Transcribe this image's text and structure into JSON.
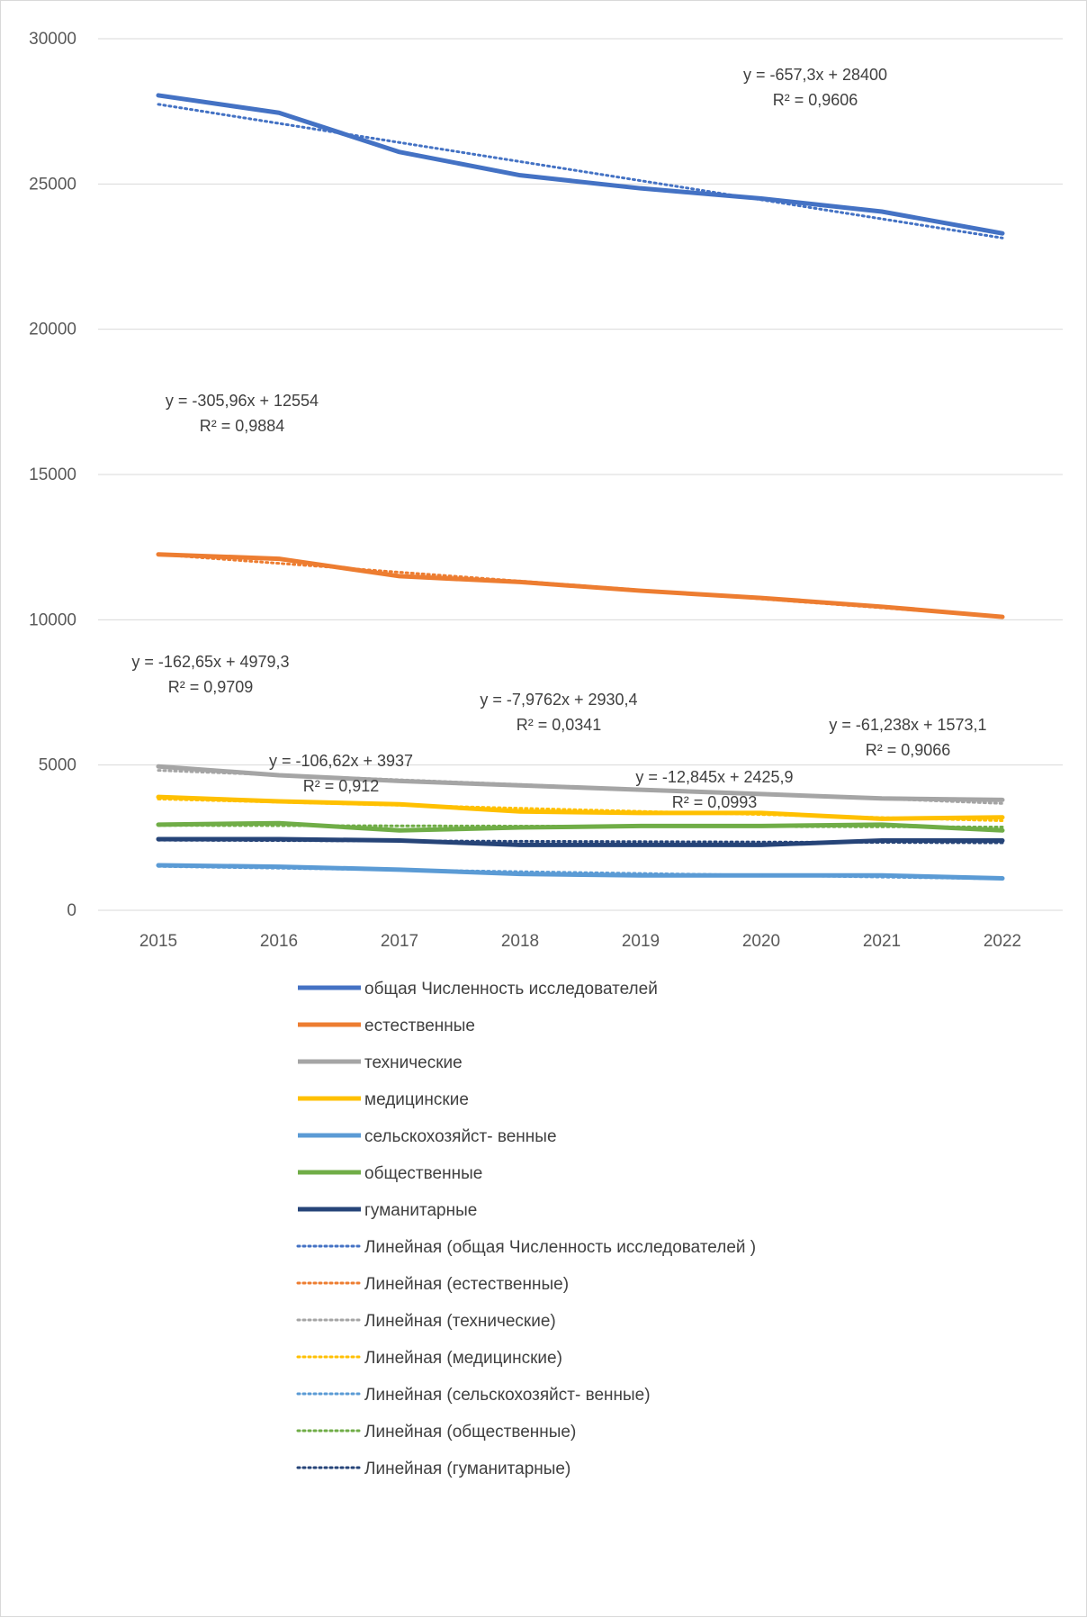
{
  "chart_data": {
    "type": "line",
    "x": [
      "2015",
      "2016",
      "2017",
      "2018",
      "2019",
      "2020",
      "2021",
      "2022"
    ],
    "ylim": [
      0,
      30000
    ],
    "yticks": [
      "0",
      "5000",
      "10000",
      "15000",
      "20000",
      "25000",
      "30000"
    ],
    "grid": "horizontal",
    "legend_position": "bottom",
    "series": [
      {
        "name": "общая Численность исследователей",
        "color": "#4472C4",
        "values": [
          28050,
          27450,
          26100,
          25300,
          24850,
          24500,
          24050,
          23300
        ]
      },
      {
        "name": "естественные",
        "color": "#ED7D31",
        "values": [
          12250,
          12100,
          11500,
          11300,
          11000,
          10750,
          10450,
          10100
        ]
      },
      {
        "name": "технические",
        "color": "#A5A5A5",
        "values": [
          4950,
          4650,
          4450,
          4300,
          4150,
          4000,
          3850,
          3800
        ]
      },
      {
        "name": "медицинские",
        "color": "#FFC000",
        "values": [
          3900,
          3750,
          3650,
          3400,
          3350,
          3350,
          3150,
          3200
        ]
      },
      {
        "name": "сельскохозяйст- венные",
        "color": "#5B9BD5",
        "values": [
          1550,
          1500,
          1400,
          1250,
          1200,
          1200,
          1200,
          1100
        ]
      },
      {
        "name": "общественные",
        "color": "#70AD47",
        "values": [
          2950,
          3000,
          2750,
          2850,
          2900,
          2900,
          2950,
          2750
        ]
      },
      {
        "name": "гуманитарные",
        "color": "#264478",
        "values": [
          2450,
          2450,
          2400,
          2250,
          2250,
          2250,
          2400,
          2400
        ]
      }
    ],
    "trendlines": [
      {
        "name": "Линейная (общая Численность исследователей )",
        "series": 0,
        "slope": -657.3,
        "intercept": 28400,
        "equation": "y = -657,3x + 28400",
        "r2": "R² = 0,9606"
      },
      {
        "name": "Линейная (естественные)",
        "series": 1,
        "slope": -305.96,
        "intercept": 12554,
        "equation": "y = -305,96x + 12554",
        "r2": "R² = 0,9884"
      },
      {
        "name": "Линейная (технические)",
        "series": 2,
        "slope": -162.65,
        "intercept": 4979.3,
        "equation": "y = -162,65x + 4979,3",
        "r2": "R² = 0,9709"
      },
      {
        "name": "Линейная (медицинские)",
        "series": 3,
        "slope": -106.62,
        "intercept": 3937,
        "equation": "y = -106,62x + 3937",
        "r2": "R² = 0,912"
      },
      {
        "name": "Линейная (сельскохозяйст- венные)",
        "series": 4,
        "slope": -61.238,
        "intercept": 1573.1,
        "equation": "y = -61,238x + 1573,1",
        "r2": "R² = 0,9066"
      },
      {
        "name": "Линейная (общественные)",
        "series": 5,
        "slope": -7.9762,
        "intercept": 2930.4,
        "equation": "y = -7,9762x + 2930,4",
        "r2": "R² = 0,0341"
      },
      {
        "name": "Линейная (гуманитарные)",
        "series": 6,
        "slope": -12.845,
        "intercept": 2425.9,
        "equation": "y = -12,845x + 2425,9",
        "r2": "R² = 0,0993"
      }
    ]
  }
}
